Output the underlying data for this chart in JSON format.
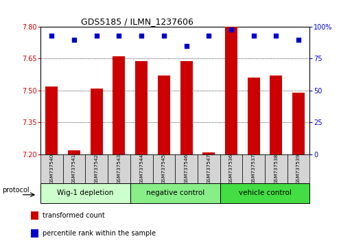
{
  "title": "GDS5185 / ILMN_1237606",
  "samples": [
    "GSM737540",
    "GSM737541",
    "GSM737542",
    "GSM737543",
    "GSM737544",
    "GSM737545",
    "GSM737546",
    "GSM737547",
    "GSM737536",
    "GSM737537",
    "GSM737538",
    "GSM737539"
  ],
  "bar_values": [
    7.52,
    7.22,
    7.51,
    7.66,
    7.64,
    7.57,
    7.64,
    7.21,
    7.8,
    7.56,
    7.57,
    7.49
  ],
  "percentile_values": [
    93,
    90,
    93,
    93,
    93,
    93,
    85,
    93,
    98,
    93,
    93,
    90
  ],
  "bar_color": "#cc0000",
  "dot_color": "#0000cc",
  "ylim_left": [
    7.2,
    7.8
  ],
  "ylim_right": [
    0,
    100
  ],
  "yticks_left": [
    7.2,
    7.35,
    7.5,
    7.65,
    7.8
  ],
  "yticks_right": [
    0,
    25,
    50,
    75,
    100
  ],
  "groups": [
    {
      "label": "Wig-1 depletion",
      "start": 0,
      "end": 4,
      "color": "#ccffcc"
    },
    {
      "label": "negative control",
      "start": 4,
      "end": 8,
      "color": "#88ee88"
    },
    {
      "label": "vehicle control",
      "start": 8,
      "end": 12,
      "color": "#44dd44"
    }
  ],
  "protocol_label": "protocol",
  "legend_red_label": "transformed count",
  "legend_blue_label": "percentile rank within the sample",
  "background_color": "#ffffff",
  "bar_baseline": 7.2,
  "bar_width": 0.55
}
